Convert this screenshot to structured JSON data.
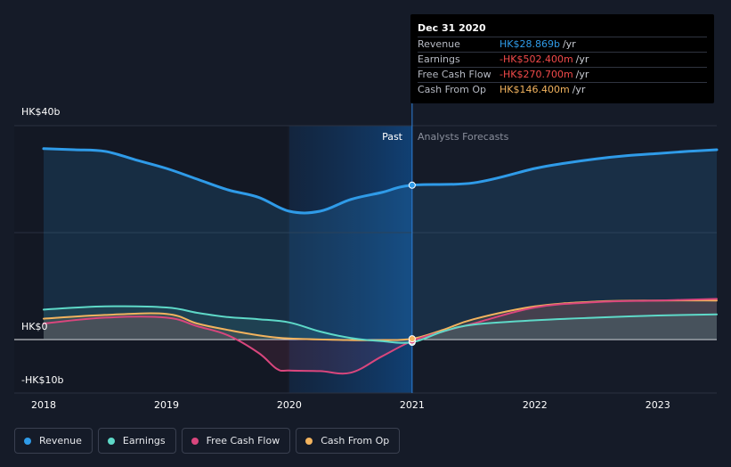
{
  "tooltip": {
    "date": "Dec 31 2020",
    "rows": [
      {
        "label": "Revenue",
        "value": "HK$28.869b",
        "unit": "/yr",
        "color": "#2f9be8"
      },
      {
        "label": "Earnings",
        "value": "-HK$502.400m",
        "unit": "/yr",
        "color": "#f24a4a"
      },
      {
        "label": "Free Cash Flow",
        "value": "-HK$270.700m",
        "unit": "/yr",
        "color": "#f24a4a"
      },
      {
        "label": "Cash From Op",
        "value": "HK$146.400m",
        "unit": "/yr",
        "color": "#f2b35e"
      }
    ]
  },
  "labels": {
    "past": "Past",
    "forecast": "Analysts Forecasts"
  },
  "legend": [
    {
      "label": "Revenue",
      "color": "#2f9be8"
    },
    {
      "label": "Earnings",
      "color": "#5ed9c8"
    },
    {
      "label": "Free Cash Flow",
      "color": "#d9467d"
    },
    {
      "label": "Cash From Op",
      "color": "#f2b35e"
    }
  ],
  "chart_data": {
    "type": "line",
    "title": "",
    "unit": "HK$ billions",
    "ylim": [
      -10,
      40
    ],
    "y_ticks": [
      {
        "value": 40,
        "label": "HK$40b"
      },
      {
        "value": 0,
        "label": "HK$0"
      },
      {
        "value": -10,
        "label": "-HK$10b"
      }
    ],
    "xlim": [
      2018.0,
      2023.48
    ],
    "x_ticks": [
      2018,
      2019,
      2020,
      2021,
      2022,
      2023
    ],
    "x_tick_labels": [
      "2018",
      "2019",
      "2020",
      "2021",
      "2022",
      "2023"
    ],
    "past_forecast_split": 2021.0,
    "highlight_range": [
      2020.0,
      2021.0
    ],
    "series": [
      {
        "name": "Revenue",
        "color": "#2f9be8",
        "line_width": 3,
        "fill": true,
        "points": [
          [
            2018.0,
            35.7
          ],
          [
            2018.25,
            35.5
          ],
          [
            2018.5,
            35.2
          ],
          [
            2018.75,
            33.6
          ],
          [
            2019.0,
            32.0
          ],
          [
            2019.25,
            30.0
          ],
          [
            2019.5,
            28.0
          ],
          [
            2019.75,
            26.6
          ],
          [
            2020.0,
            24.0
          ],
          [
            2020.25,
            24.0
          ],
          [
            2020.5,
            26.2
          ],
          [
            2020.75,
            27.5
          ],
          [
            2021.0,
            28.869
          ],
          [
            2021.5,
            29.3
          ],
          [
            2022.0,
            32.0
          ],
          [
            2022.25,
            33.0
          ],
          [
            2022.5,
            33.8
          ],
          [
            2022.75,
            34.4
          ],
          [
            2023.0,
            34.8
          ],
          [
            2023.25,
            35.2
          ],
          [
            2023.48,
            35.5
          ]
        ]
      },
      {
        "name": "Earnings",
        "color": "#5ed9c8",
        "line_width": 2,
        "fill": true,
        "points": [
          [
            2018.0,
            5.6
          ],
          [
            2018.5,
            6.2
          ],
          [
            2019.0,
            6.0
          ],
          [
            2019.25,
            5.0
          ],
          [
            2019.5,
            4.2
          ],
          [
            2019.75,
            3.8
          ],
          [
            2020.0,
            3.2
          ],
          [
            2020.25,
            1.5
          ],
          [
            2020.5,
            0.3
          ],
          [
            2020.75,
            -0.3
          ],
          [
            2021.0,
            -0.5024
          ],
          [
            2021.25,
            1.5
          ],
          [
            2021.5,
            2.8
          ],
          [
            2022.0,
            3.6
          ],
          [
            2022.5,
            4.1
          ],
          [
            2023.0,
            4.5
          ],
          [
            2023.48,
            4.7
          ]
        ]
      },
      {
        "name": "Free Cash Flow",
        "color": "#d9467d",
        "line_width": 2,
        "fill": true,
        "points": [
          [
            2018.0,
            3.0
          ],
          [
            2018.5,
            4.1
          ],
          [
            2019.0,
            4.1
          ],
          [
            2019.25,
            2.5
          ],
          [
            2019.5,
            0.8
          ],
          [
            2019.75,
            -2.5
          ],
          [
            2019.9,
            -5.5
          ],
          [
            2020.0,
            -5.8
          ],
          [
            2020.25,
            -5.9
          ],
          [
            2020.5,
            -6.2
          ],
          [
            2020.75,
            -3.2
          ],
          [
            2021.0,
            -0.2707
          ],
          [
            2021.25,
            1.5
          ],
          [
            2021.5,
            3.0
          ],
          [
            2022.0,
            6.0
          ],
          [
            2022.5,
            7.0
          ],
          [
            2023.0,
            7.3
          ],
          [
            2023.48,
            7.6
          ]
        ]
      },
      {
        "name": "Cash From Op",
        "color": "#f2b35e",
        "line_width": 2,
        "fill": true,
        "points": [
          [
            2018.0,
            3.9
          ],
          [
            2018.5,
            4.6
          ],
          [
            2019.0,
            4.8
          ],
          [
            2019.25,
            3.0
          ],
          [
            2019.5,
            1.8
          ],
          [
            2019.75,
            0.8
          ],
          [
            2020.0,
            0.2
          ],
          [
            2020.5,
            -0.1
          ],
          [
            2020.75,
            -0.1
          ],
          [
            2021.0,
            0.1464
          ],
          [
            2021.25,
            1.8
          ],
          [
            2021.5,
            3.8
          ],
          [
            2022.0,
            6.2
          ],
          [
            2022.5,
            7.1
          ],
          [
            2023.0,
            7.3
          ],
          [
            2023.48,
            7.3
          ]
        ]
      }
    ],
    "markers": [
      {
        "series": "Revenue",
        "x": 2021.0,
        "y": 28.869
      },
      {
        "series": "Earnings",
        "x": 2021.0,
        "y": -0.5024
      },
      {
        "series": "Free Cash Flow",
        "x": 2021.0,
        "y": -0.2707
      },
      {
        "series": "Cash From Op",
        "x": 2021.0,
        "y": 0.1464
      }
    ]
  }
}
